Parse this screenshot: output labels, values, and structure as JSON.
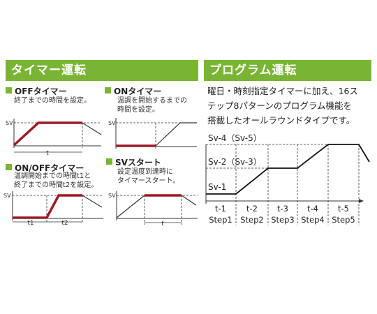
{
  "left_panel": {
    "title": "タイマー運転",
    "off_timer": {
      "title": "OFFタイマー",
      "lines": [
        "終了までの時間を設定。"
      ],
      "sv_label": "SV",
      "t_label": "t"
    },
    "on_timer": {
      "title": "ONタイマー",
      "lines": [
        "温調を開始するまでの",
        "時間を設定。"
      ],
      "sv_label": "SV"
    },
    "onoff_timer": {
      "title": "ON/OFFタイマー",
      "lines": [
        "温調開始までの時間t1と",
        "終了までの時間t2を設定。"
      ],
      "sv_label": "SV",
      "t1_label": "t1",
      "t2_label": "t2"
    },
    "sv_start": {
      "title": "SVスタート",
      "lines": [
        "設定温度到達時に",
        "タイマースタート。"
      ],
      "sv_label": "SV",
      "t_label": "t"
    }
  },
  "right_panel": {
    "title": "プログラム運転",
    "lines": [
      "曜日・時刻指定タイマーに加え、16ス",
      "テップ8パターンのプログラム機能を",
      "搭載したオールラウンドタイプです。"
    ],
    "levels": [
      "Sv-4（Sv-5）",
      "Sv-2（Sv-3）",
      "Sv-1"
    ],
    "times": [
      "t-1",
      "t-2",
      "t-3",
      "t-4",
      "t-5"
    ],
    "steps": [
      "Step1",
      "Step2",
      "Step3",
      "Step4",
      "Step5"
    ]
  },
  "colors": {
    "accent": "#7ab434",
    "highlight": "#9b1b24",
    "line": "#333333"
  }
}
